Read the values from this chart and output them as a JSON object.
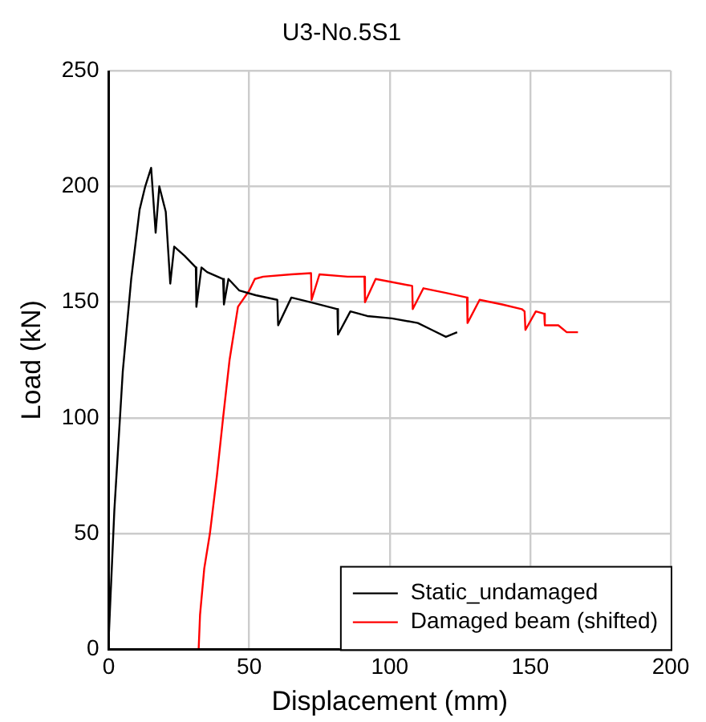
{
  "chart_data": {
    "type": "line",
    "title": "U3-No.5S1",
    "xlabel": "Displacement (mm)",
    "ylabel": "Load (kN)",
    "xlim": [
      0,
      200
    ],
    "xticks": [
      0,
      50,
      100,
      150,
      200
    ],
    "ylim": [
      0,
      250
    ],
    "yticks": [
      0,
      50,
      100,
      150,
      200,
      250
    ],
    "grid": true,
    "legend": "bottom right",
    "marker": "none",
    "line_style": "solid",
    "series": [
      {
        "name": "Static_undamaged",
        "color": "#000000",
        "x": [
          0,
          2,
          5,
          8,
          11,
          13,
          15.1,
          16.7,
          18,
          20.3,
          21.9,
          23.3,
          27,
          31,
          31.2,
          33,
          35,
          40.7,
          41,
          42.6,
          46.5,
          52.3,
          60,
          60.3,
          65,
          71.7,
          81.4,
          81.6,
          86,
          92,
          100.8,
          110,
          115,
          120,
          124
        ],
        "values": [
          5,
          60,
          120,
          160,
          190,
          200,
          208,
          180,
          200,
          189,
          158,
          174,
          170,
          165,
          148,
          165,
          163,
          160,
          149,
          160,
          155,
          153,
          151,
          140,
          152,
          150,
          147,
          136,
          146,
          144,
          143,
          141,
          138,
          135,
          137
        ]
      },
      {
        "name": "Damaged beam (shifted)",
        "color": "#ff0000",
        "x": [
          32,
          32.5,
          34,
          36,
          38.5,
          40.7,
          43,
          46,
          50,
          52,
          55,
          65,
          72,
          72.2,
          75,
          85,
          91,
          91.2,
          95,
          108,
          108.2,
          112,
          120,
          127.5,
          127.7,
          132,
          140,
          147,
          148,
          148.3,
          152,
          155,
          155.2,
          160,
          163,
          167
        ],
        "values": [
          0,
          15,
          35,
          50,
          75,
          100,
          125,
          148,
          155,
          160,
          161,
          162,
          162.5,
          151,
          162,
          161,
          161,
          150,
          160,
          157,
          147,
          156,
          154,
          152,
          141,
          151,
          149,
          147,
          146,
          138,
          146,
          145,
          140,
          140,
          137,
          137
        ]
      }
    ]
  }
}
